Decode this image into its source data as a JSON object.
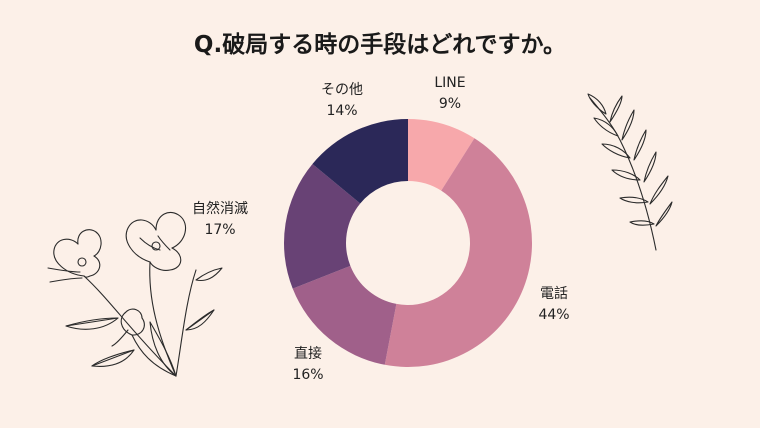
{
  "chart_data": {
    "type": "pie",
    "variant": "donut",
    "title": "Q.破局する時の手段はどれですか。",
    "categories": [
      "LINE",
      "電話",
      "直接",
      "自然消滅",
      "その他"
    ],
    "values": [
      9,
      44,
      16,
      17,
      14
    ],
    "value_labels": [
      "9%",
      "44%",
      "16%",
      "17%",
      "14%"
    ],
    "colors": [
      "#f7a8ab",
      "#cf8199",
      "#a0608a",
      "#684275",
      "#2b2858"
    ],
    "start_angle_deg": 0,
    "direction": "clockwise"
  }
}
